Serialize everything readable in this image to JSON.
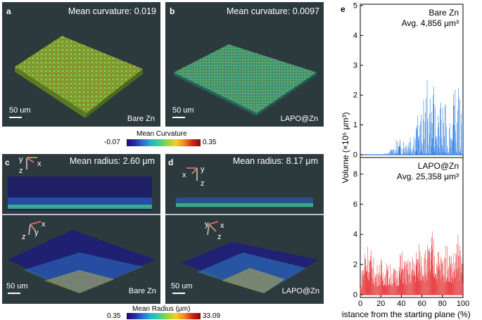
{
  "panels": {
    "a": {
      "label": "a",
      "mean_curvature": "Mean curvature: 0.019",
      "scale": "50 um",
      "sample": "Bare Zn"
    },
    "b": {
      "label": "b",
      "mean_curvature": "Mean curvature: 0.0097",
      "scale": "50 um",
      "sample": "LAPO@Zn"
    },
    "c": {
      "label": "c",
      "mean_radius": "Mean radius: 2.60 μm",
      "scale": "50 um",
      "sample": "Bare Zn",
      "axes_top": [
        "y",
        "x",
        "z"
      ],
      "axes_bottom": [
        "x",
        "z",
        "y"
      ]
    },
    "d": {
      "label": "d",
      "mean_radius": "Mean radius: 8.17 μm",
      "scale": "50 um",
      "sample": "LAPO@Zn",
      "axes_top": [
        "y",
        "x",
        "z"
      ],
      "axes_bottom": [
        "y",
        "x",
        "z"
      ]
    },
    "e": {
      "label": "e"
    }
  },
  "colorbars": {
    "curvature": {
      "title": "Mean Curvature",
      "min": "-0.07",
      "max": "0.35"
    },
    "radius": {
      "title": "Mean Radius (μm)",
      "min": "0.35",
      "max": "33.09"
    }
  },
  "chart_data": [
    {
      "type": "bar",
      "title": "",
      "legend": [
        "Bare Zn",
        "Avg. 4,856 μm³"
      ],
      "xlabel": "",
      "ylabel": "",
      "xlim": [
        0,
        100
      ],
      "ylim": [
        0,
        5
      ],
      "yticks": [
        "0",
        "1",
        "2",
        "3",
        "4",
        "5"
      ],
      "color": "#2f7fe0",
      "x": [
        0,
        10,
        20,
        28,
        35,
        40,
        45,
        50,
        55,
        60,
        65,
        70,
        75,
        80,
        85,
        90,
        95,
        100
      ],
      "values": [
        0.02,
        0.02,
        0.02,
        0.1,
        0.5,
        0.6,
        1.0,
        1.2,
        1.4,
        1.5,
        2.6,
        2.5,
        1.8,
        1.9,
        1.6,
        2.0,
        2.4,
        2.75
      ]
    },
    {
      "type": "bar",
      "title": "",
      "legend": [
        "LAPO@Zn",
        "Avg. 25,358 μm³"
      ],
      "xlabel": "Distance from the starting plane (%)",
      "ylabel": "Volume (×10⁵ μm³)",
      "xlim": [
        0,
        100
      ],
      "ylim": [
        0,
        9
      ],
      "yticks": [
        "0",
        "2",
        "4",
        "6",
        "8"
      ],
      "xticks": [
        "0",
        "20",
        "40",
        "60",
        "80",
        "100"
      ],
      "color": "#e8474a",
      "x": [
        0,
        5,
        10,
        15,
        20,
        25,
        30,
        35,
        40,
        45,
        50,
        55,
        60,
        65,
        70,
        75,
        80,
        85,
        90,
        95,
        100
      ],
      "values": [
        0.8,
        4.2,
        3.3,
        2.0,
        2.5,
        2.2,
        2.1,
        1.8,
        3.2,
        2.4,
        2.6,
        3.5,
        3.6,
        3.2,
        4.5,
        3.3,
        3.0,
        3.6,
        2.8,
        4.1,
        3.0
      ]
    }
  ]
}
